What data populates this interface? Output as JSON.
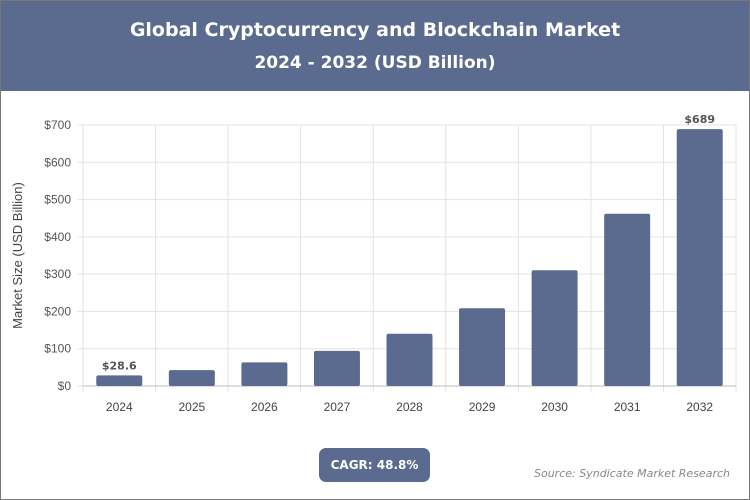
{
  "header": {
    "title": "Global Cryptocurrency and Blockchain Market",
    "subtitle": "2024 - 2032 (USD Billion)"
  },
  "badge": {
    "cagr": "CAGR: 48.8%"
  },
  "source": "Source: Syndicate Market Research",
  "colors": {
    "bar": "#5b6b8f",
    "header": "#5b6b8f"
  },
  "chart_data": {
    "type": "bar",
    "title": "Global Cryptocurrency and Blockchain Market",
    "subtitle": "2024 - 2032 (USD Billion)",
    "xlabel": "",
    "ylabel": "Market Size (USD Billion)",
    "ylim": [
      0,
      700
    ],
    "yticks": [
      "$0",
      "$100",
      "$200",
      "$300",
      "$400",
      "$500",
      "$600",
      "$700"
    ],
    "grid": true,
    "categories": [
      "2024",
      "2025",
      "2026",
      "2027",
      "2028",
      "2029",
      "2030",
      "2031",
      "2032"
    ],
    "values": [
      28.6,
      42.6,
      63.3,
      94.2,
      140.2,
      208.6,
      310.4,
      461.9,
      689
    ],
    "data_labels": {
      "0": "$28.6",
      "8": "$689"
    }
  }
}
